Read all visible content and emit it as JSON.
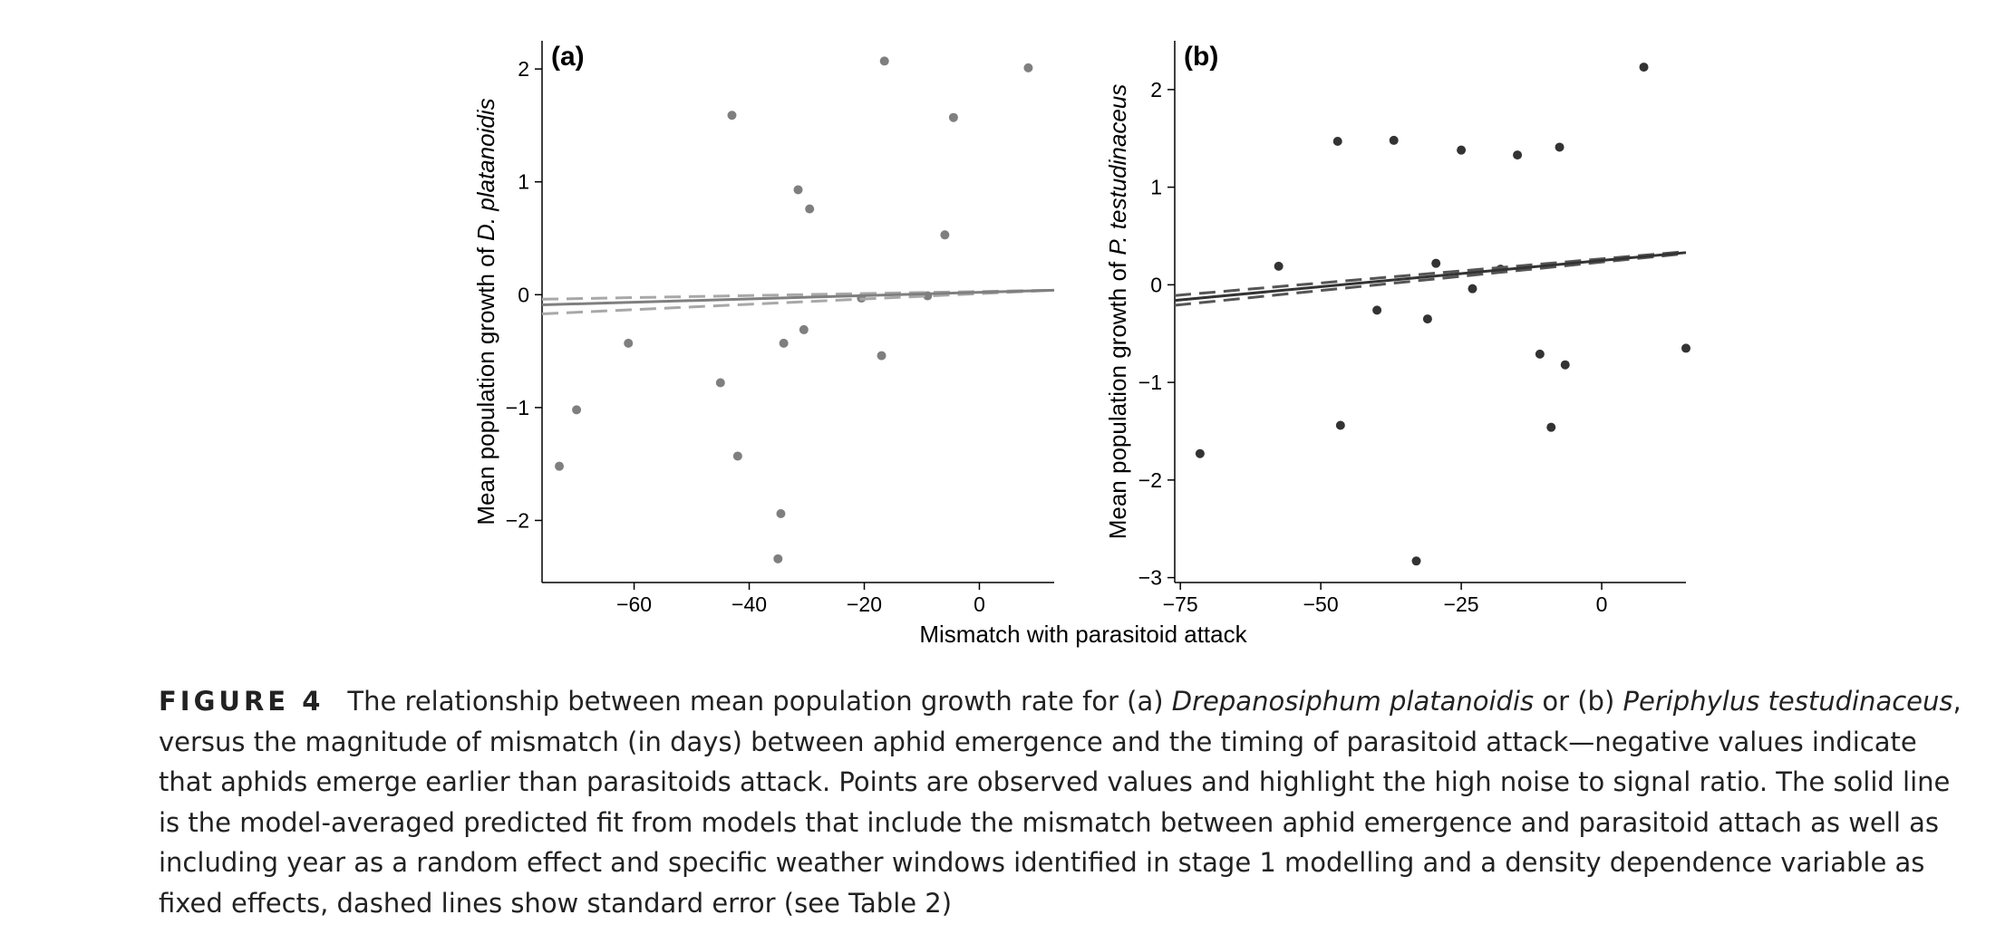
{
  "chart_data": [
    {
      "type": "scatter",
      "panel_label": "(a)",
      "xlabel": "Mismatch with parasitoid attack",
      "ylabel_prefix": "Mean population growth of ",
      "ylabel_species": "D. platanoidis",
      "xlim": [
        -76,
        13
      ],
      "ylim": [
        -2.55,
        2.25
      ],
      "x_ticks": [
        -60,
        -40,
        -20,
        0
      ],
      "x_tick_labels": [
        "−60",
        "−40",
        "−20",
        "0"
      ],
      "y_ticks": [
        2,
        1,
        0,
        -1,
        -2
      ],
      "y_tick_labels": [
        "2",
        "1",
        "0",
        "−1",
        "−2"
      ],
      "point_color": "#7f7f7f",
      "line_color": "#7f7f7f",
      "dashed_color": "#a8a8a8",
      "points": [
        {
          "x": -73,
          "y": -1.52
        },
        {
          "x": -70,
          "y": -1.02
        },
        {
          "x": -61,
          "y": -0.43
        },
        {
          "x": -45,
          "y": -0.78
        },
        {
          "x": -43,
          "y": 1.59
        },
        {
          "x": -42,
          "y": -1.43
        },
        {
          "x": -35,
          "y": -2.34
        },
        {
          "x": -34.5,
          "y": -1.94
        },
        {
          "x": -34,
          "y": -0.43
        },
        {
          "x": -31.5,
          "y": 0.93
        },
        {
          "x": -30.5,
          "y": -0.31
        },
        {
          "x": -29.5,
          "y": 0.76
        },
        {
          "x": -20.5,
          "y": -0.03
        },
        {
          "x": -17,
          "y": -0.54
        },
        {
          "x": -16.5,
          "y": 2.07
        },
        {
          "x": -9,
          "y": -0.01
        },
        {
          "x": -6,
          "y": 0.53
        },
        {
          "x": -4.5,
          "y": 1.57
        },
        {
          "x": 8.5,
          "y": 2.01
        }
      ],
      "fit": {
        "x": [
          -76,
          13
        ],
        "y": [
          -0.09,
          0.04
        ]
      },
      "se_upper": {
        "x": [
          -76,
          13
        ],
        "y": [
          -0.04,
          0.04
        ]
      },
      "se_lower": {
        "x": [
          -76,
          13
        ],
        "y": [
          -0.17,
          0.04
        ]
      }
    },
    {
      "type": "scatter",
      "panel_label": "(b)",
      "xlabel": "",
      "ylabel_prefix": "Mean population growth of ",
      "ylabel_species": "P. testudinaceus",
      "xlim": [
        -76,
        15
      ],
      "ylim": [
        -3.05,
        2.5
      ],
      "x_ticks": [
        -75,
        -50,
        -25,
        0
      ],
      "x_tick_labels": [
        "−75",
        "−50",
        "−25",
        "0"
      ],
      "y_ticks": [
        2,
        1,
        0,
        -1,
        -2,
        -3
      ],
      "y_tick_labels": [
        "2",
        "1",
        "0",
        "−1",
        "−2",
        "−3"
      ],
      "point_color": "#333333",
      "line_color": "#333333",
      "dashed_color": "#555555",
      "points": [
        {
          "x": -71.5,
          "y": -1.73
        },
        {
          "x": -57.5,
          "y": 0.19
        },
        {
          "x": -47,
          "y": 1.47
        },
        {
          "x": -46.5,
          "y": -1.44
        },
        {
          "x": -40,
          "y": -0.26
        },
        {
          "x": -37,
          "y": 1.48
        },
        {
          "x": -33,
          "y": -2.83
        },
        {
          "x": -31,
          "y": -0.35
        },
        {
          "x": -29.5,
          "y": 0.22
        },
        {
          "x": -25,
          "y": 1.38
        },
        {
          "x": -23,
          "y": -0.04
        },
        {
          "x": -18,
          "y": 0.16
        },
        {
          "x": -15,
          "y": 1.33
        },
        {
          "x": -11,
          "y": -0.71
        },
        {
          "x": -9,
          "y": -1.46
        },
        {
          "x": -7.5,
          "y": 1.41
        },
        {
          "x": -6.5,
          "y": -0.82
        },
        {
          "x": 7.5,
          "y": 2.23
        },
        {
          "x": 15,
          "y": -0.65
        }
      ],
      "fit": {
        "x": [
          -76,
          15
        ],
        "y": [
          -0.16,
          0.33
        ]
      },
      "se_upper": {
        "x": [
          -76,
          15
        ],
        "y": [
          -0.11,
          0.34
        ]
      },
      "se_lower": {
        "x": [
          -76,
          15
        ],
        "y": [
          -0.21,
          0.32
        ]
      }
    }
  ],
  "caption": {
    "label": "FIGURE 4",
    "part1": "The relationship between mean population growth rate for (a) ",
    "species_a": "Drepanosiphum platanoidis",
    "part2": " or (b) ",
    "species_b": "Periphylus testudinaceus",
    "part3": ", versus the magnitude of mismatch (in days) between aphid emergence and the timing of parasitoid attack—negative values indicate that aphids emerge earlier than parasitoids attack. Points are observed values and highlight the high noise to signal ratio. The solid line is the model-averaged predicted fit from models that include the mismatch between aphid emergence and parasitoid attach as well as including year as a random effect and specific weather windows identified in stage 1 modelling and a density dependence variable as fixed effects, dashed lines show standard error (see Table 2)"
  }
}
